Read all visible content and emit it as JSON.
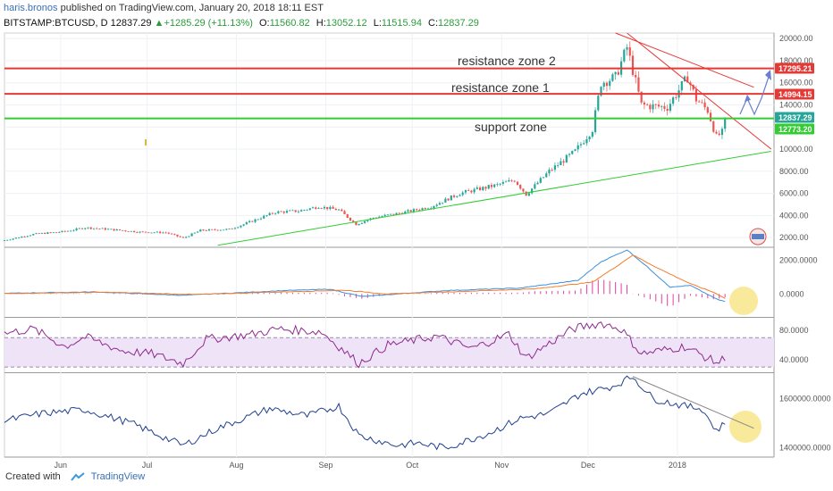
{
  "header": {
    "author": "haris.bronos",
    "published_text": "published on TradingView.com, January 20, 2018 18:11 EST",
    "symbol": "BITSTAMP:BTCUSD, D",
    "last": "12837.29",
    "change": "+1285.29 (+11.13%)",
    "open_label": "O:",
    "open": "11560.82",
    "high_label": "H:",
    "high": "13052.12",
    "low_label": "L:",
    "low": "11515.94",
    "close_label": "C:",
    "close": "12837.29"
  },
  "footer": {
    "created_with": "Created with",
    "brand": "TradingView"
  },
  "colors": {
    "up": "#26a69a",
    "down": "#ef5350",
    "resistance": "#e53935",
    "support": "#33cc33",
    "macd": "#3b8fe0",
    "signal": "#f57c2b",
    "hist": "#e040a0",
    "rsi": "#8e2a8e",
    "obv": "#1f3f8f",
    "highlight": "#f7e27a",
    "arrow": "#6a7fd0"
  },
  "chart_data": [
    {
      "type": "candlestick",
      "title": "BITSTAMP:BTCUSD, D",
      "x_ticks": [
        "Jun",
        "Jul",
        "Aug",
        "Sep",
        "Oct",
        "Nov",
        "Dec",
        "2018"
      ],
      "y_ticks": [
        2000,
        4000,
        6000,
        8000,
        10000,
        12000,
        14000,
        16000,
        18000,
        20000
      ],
      "ylim": [
        1200,
        20500
      ],
      "price_labels": [
        {
          "value": 17295.21,
          "text": "17295.21",
          "color": "#e53935"
        },
        {
          "value": 14994.15,
          "text": "14994.15",
          "color": "#e53935"
        },
        {
          "value": 12837.29,
          "text": "12837.29",
          "color": "#26a69a"
        },
        {
          "value": 12773.2,
          "text": "12773.20",
          "color": "#33cc33"
        }
      ],
      "zones": [
        {
          "label": "resistance zone 2",
          "value": 17295.21,
          "kind": "resistance"
        },
        {
          "label": "resistance zone 1",
          "value": 14994.15,
          "kind": "resistance"
        },
        {
          "label": "support zone",
          "value": 12773.2,
          "kind": "support"
        }
      ],
      "anchor_closes": [
        [
          "2017-05-15",
          1750
        ],
        [
          "2017-05-25",
          2300
        ],
        [
          "2017-06-05",
          2550
        ],
        [
          "2017-06-12",
          2900
        ],
        [
          "2017-06-20",
          2750
        ],
        [
          "2017-07-01",
          2500
        ],
        [
          "2017-07-10",
          2450
        ],
        [
          "2017-07-16",
          1950
        ],
        [
          "2017-07-22",
          2650
        ],
        [
          "2017-08-01",
          2750
        ],
        [
          "2017-08-06",
          3200
        ],
        [
          "2017-08-17",
          4300
        ],
        [
          "2017-08-25",
          4400
        ],
        [
          "2017-09-01",
          4800
        ],
        [
          "2017-09-08",
          4500
        ],
        [
          "2017-09-14",
          3200
        ],
        [
          "2017-09-20",
          3800
        ],
        [
          "2017-10-01",
          4300
        ],
        [
          "2017-10-10",
          4800
        ],
        [
          "2017-10-20",
          6000
        ],
        [
          "2017-11-01",
          6700
        ],
        [
          "2017-11-08",
          7200
        ],
        [
          "2017-11-12",
          5900
        ],
        [
          "2017-11-20",
          8000
        ],
        [
          "2017-11-29",
          9800
        ],
        [
          "2017-12-05",
          11800
        ],
        [
          "2017-12-08",
          16000
        ],
        [
          "2017-12-13",
          16500
        ],
        [
          "2017-12-17",
          19200
        ],
        [
          "2017-12-22",
          14000
        ],
        [
          "2017-12-25",
          13900
        ],
        [
          "2017-12-31",
          13800
        ],
        [
          "2018-01-07",
          16500
        ],
        [
          "2018-01-10",
          14500
        ],
        [
          "2018-01-14",
          13500
        ],
        [
          "2018-01-17",
          11100
        ],
        [
          "2018-01-19",
          11500
        ],
        [
          "2018-01-20",
          12837
        ]
      ],
      "trendlines": [
        {
          "kind": "support",
          "from": [
            "2017-07-28",
            1300
          ],
          "to": [
            "2018-02-05",
            9800
          ]
        },
        {
          "kind": "resistance",
          "from": [
            "2017-12-13",
            20500
          ],
          "to": [
            "2018-01-30",
            15600
          ]
        },
        {
          "kind": "resistance",
          "from": [
            "2017-12-17",
            20500
          ],
          "to": [
            "2018-02-05",
            10000
          ]
        }
      ]
    },
    {
      "type": "line",
      "indicator": "MACD",
      "y_ticks": [
        "2000.0000",
        "0.0000"
      ],
      "ylim": [
        -1300,
        2700
      ],
      "series": [
        {
          "role": "macd",
          "anchors": [
            [
              "2017-05-15",
              40
            ],
            [
              "2017-06-15",
              120
            ],
            [
              "2017-07-16",
              -80
            ],
            [
              "2017-08-20",
              200
            ],
            [
              "2017-09-05",
              280
            ],
            [
              "2017-09-16",
              -150
            ],
            [
              "2017-10-15",
              200
            ],
            [
              "2017-11-10",
              350
            ],
            [
              "2017-11-30",
              800
            ],
            [
              "2017-12-08",
              1900
            ],
            [
              "2017-12-17",
              2600
            ],
            [
              "2017-12-24",
              1600
            ],
            [
              "2018-01-01",
              400
            ],
            [
              "2018-01-08",
              500
            ],
            [
              "2018-01-17",
              -300
            ],
            [
              "2018-01-20",
              -450
            ]
          ]
        },
        {
          "role": "signal",
          "anchors": [
            [
              "2017-05-15",
              30
            ],
            [
              "2017-06-20",
              100
            ],
            [
              "2017-07-20",
              -30
            ],
            [
              "2017-08-25",
              150
            ],
            [
              "2017-09-10",
              220
            ],
            [
              "2017-09-25",
              0
            ],
            [
              "2017-10-20",
              150
            ],
            [
              "2017-11-15",
              300
            ],
            [
              "2017-12-05",
              700
            ],
            [
              "2017-12-14",
              1700
            ],
            [
              "2017-12-19",
              2300
            ],
            [
              "2017-12-28",
              1500
            ],
            [
              "2018-01-08",
              600
            ],
            [
              "2018-01-16",
              100
            ],
            [
              "2018-01-20",
              -250
            ]
          ]
        }
      ]
    },
    {
      "type": "line",
      "indicator": "RSI",
      "y_ticks": [
        "80.0000",
        "40.0000"
      ],
      "ylim": [
        24,
        96
      ],
      "band": [
        30,
        70
      ],
      "anchors": [
        [
          "2017-05-15",
          76
        ],
        [
          "2017-05-25",
          82
        ],
        [
          "2017-06-05",
          58
        ],
        [
          "2017-06-12",
          71
        ],
        [
          "2017-06-25",
          52
        ],
        [
          "2017-07-05",
          48
        ],
        [
          "2017-07-16",
          35
        ],
        [
          "2017-07-24",
          68
        ],
        [
          "2017-08-08",
          74
        ],
        [
          "2017-08-18",
          82
        ],
        [
          "2017-09-02",
          78
        ],
        [
          "2017-09-15",
          35
        ],
        [
          "2017-09-25",
          60
        ],
        [
          "2017-10-12",
          72
        ],
        [
          "2017-10-24",
          55
        ],
        [
          "2017-11-06",
          75
        ],
        [
          "2017-11-12",
          42
        ],
        [
          "2017-11-28",
          82
        ],
        [
          "2017-12-08",
          90
        ],
        [
          "2017-12-15",
          82
        ],
        [
          "2017-12-22",
          48
        ],
        [
          "2018-01-06",
          58
        ],
        [
          "2018-01-16",
          38
        ],
        [
          "2018-01-18",
          36
        ],
        [
          "2018-01-20",
          44
        ]
      ]
    },
    {
      "type": "line",
      "indicator": "OBV",
      "y_ticks": [
        "1600000.0000",
        "1400000.0000"
      ],
      "ylim": [
        1370000,
        1700000
      ],
      "anchors": [
        [
          "2017-05-15",
          1510000
        ],
        [
          "2017-05-28",
          1540000
        ],
        [
          "2017-06-12",
          1555000
        ],
        [
          "2017-06-28",
          1500000
        ],
        [
          "2017-07-16",
          1410000
        ],
        [
          "2017-07-28",
          1480000
        ],
        [
          "2017-08-15",
          1560000
        ],
        [
          "2017-08-28",
          1530000
        ],
        [
          "2017-09-08",
          1570000
        ],
        [
          "2017-09-15",
          1450000
        ],
        [
          "2017-09-28",
          1410000
        ],
        [
          "2017-10-05",
          1420000
        ],
        [
          "2017-10-15",
          1400000
        ],
        [
          "2017-10-30",
          1460000
        ],
        [
          "2017-11-10",
          1520000
        ],
        [
          "2017-11-20",
          1540000
        ],
        [
          "2017-12-01",
          1620000
        ],
        [
          "2017-12-12",
          1650000
        ],
        [
          "2017-12-19",
          1690000
        ],
        [
          "2017-12-26",
          1600000
        ],
        [
          "2018-01-06",
          1570000
        ],
        [
          "2018-01-12",
          1560000
        ],
        [
          "2018-01-17",
          1470000
        ],
        [
          "2018-01-20",
          1500000
        ]
      ]
    }
  ]
}
